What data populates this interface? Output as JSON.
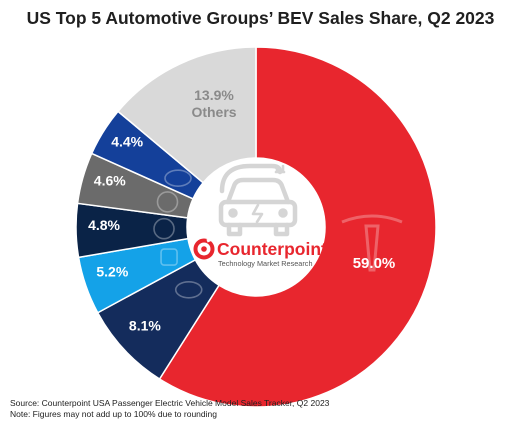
{
  "chart_data": {
    "type": "pie",
    "title": "US Top 5 Automotive Groups’ BEV Sales Share, Q2 2023",
    "categories": [
      "Tesla",
      "Hyundai",
      "GM",
      "Volkswagen",
      "Mercedes-Benz",
      "Ford",
      "Others"
    ],
    "values": [
      59.0,
      8.1,
      5.2,
      4.8,
      4.6,
      4.4,
      13.9
    ],
    "labels": [
      "59.0%",
      "8.1%",
      "5.2%",
      "4.8%",
      "4.6%",
      "4.4%",
      "13.9%"
    ],
    "others_label": "Others",
    "colors": [
      "#e8262e",
      "#142c5c",
      "#14a2e8",
      "#0a2347",
      "#6b6b6b",
      "#14409a",
      "#d9d9d9"
    ],
    "icons": [
      "tesla-logo",
      "hyundai-logo",
      "gm-logo",
      "volkswagen-logo",
      "mercedes-logo",
      "ford-logo",
      ""
    ],
    "center_icon": "electric-car-icon"
  },
  "brand": {
    "name": "Counterpoint",
    "tagline": "Technology Market Research",
    "color": "#e8262e"
  },
  "footer": {
    "source": "Source: Counterpoint USA Passenger Electric Vehicle Model Sales Tracker, Q2 2023",
    "note": "Note: Figures may not add up to 100% due to rounding"
  }
}
